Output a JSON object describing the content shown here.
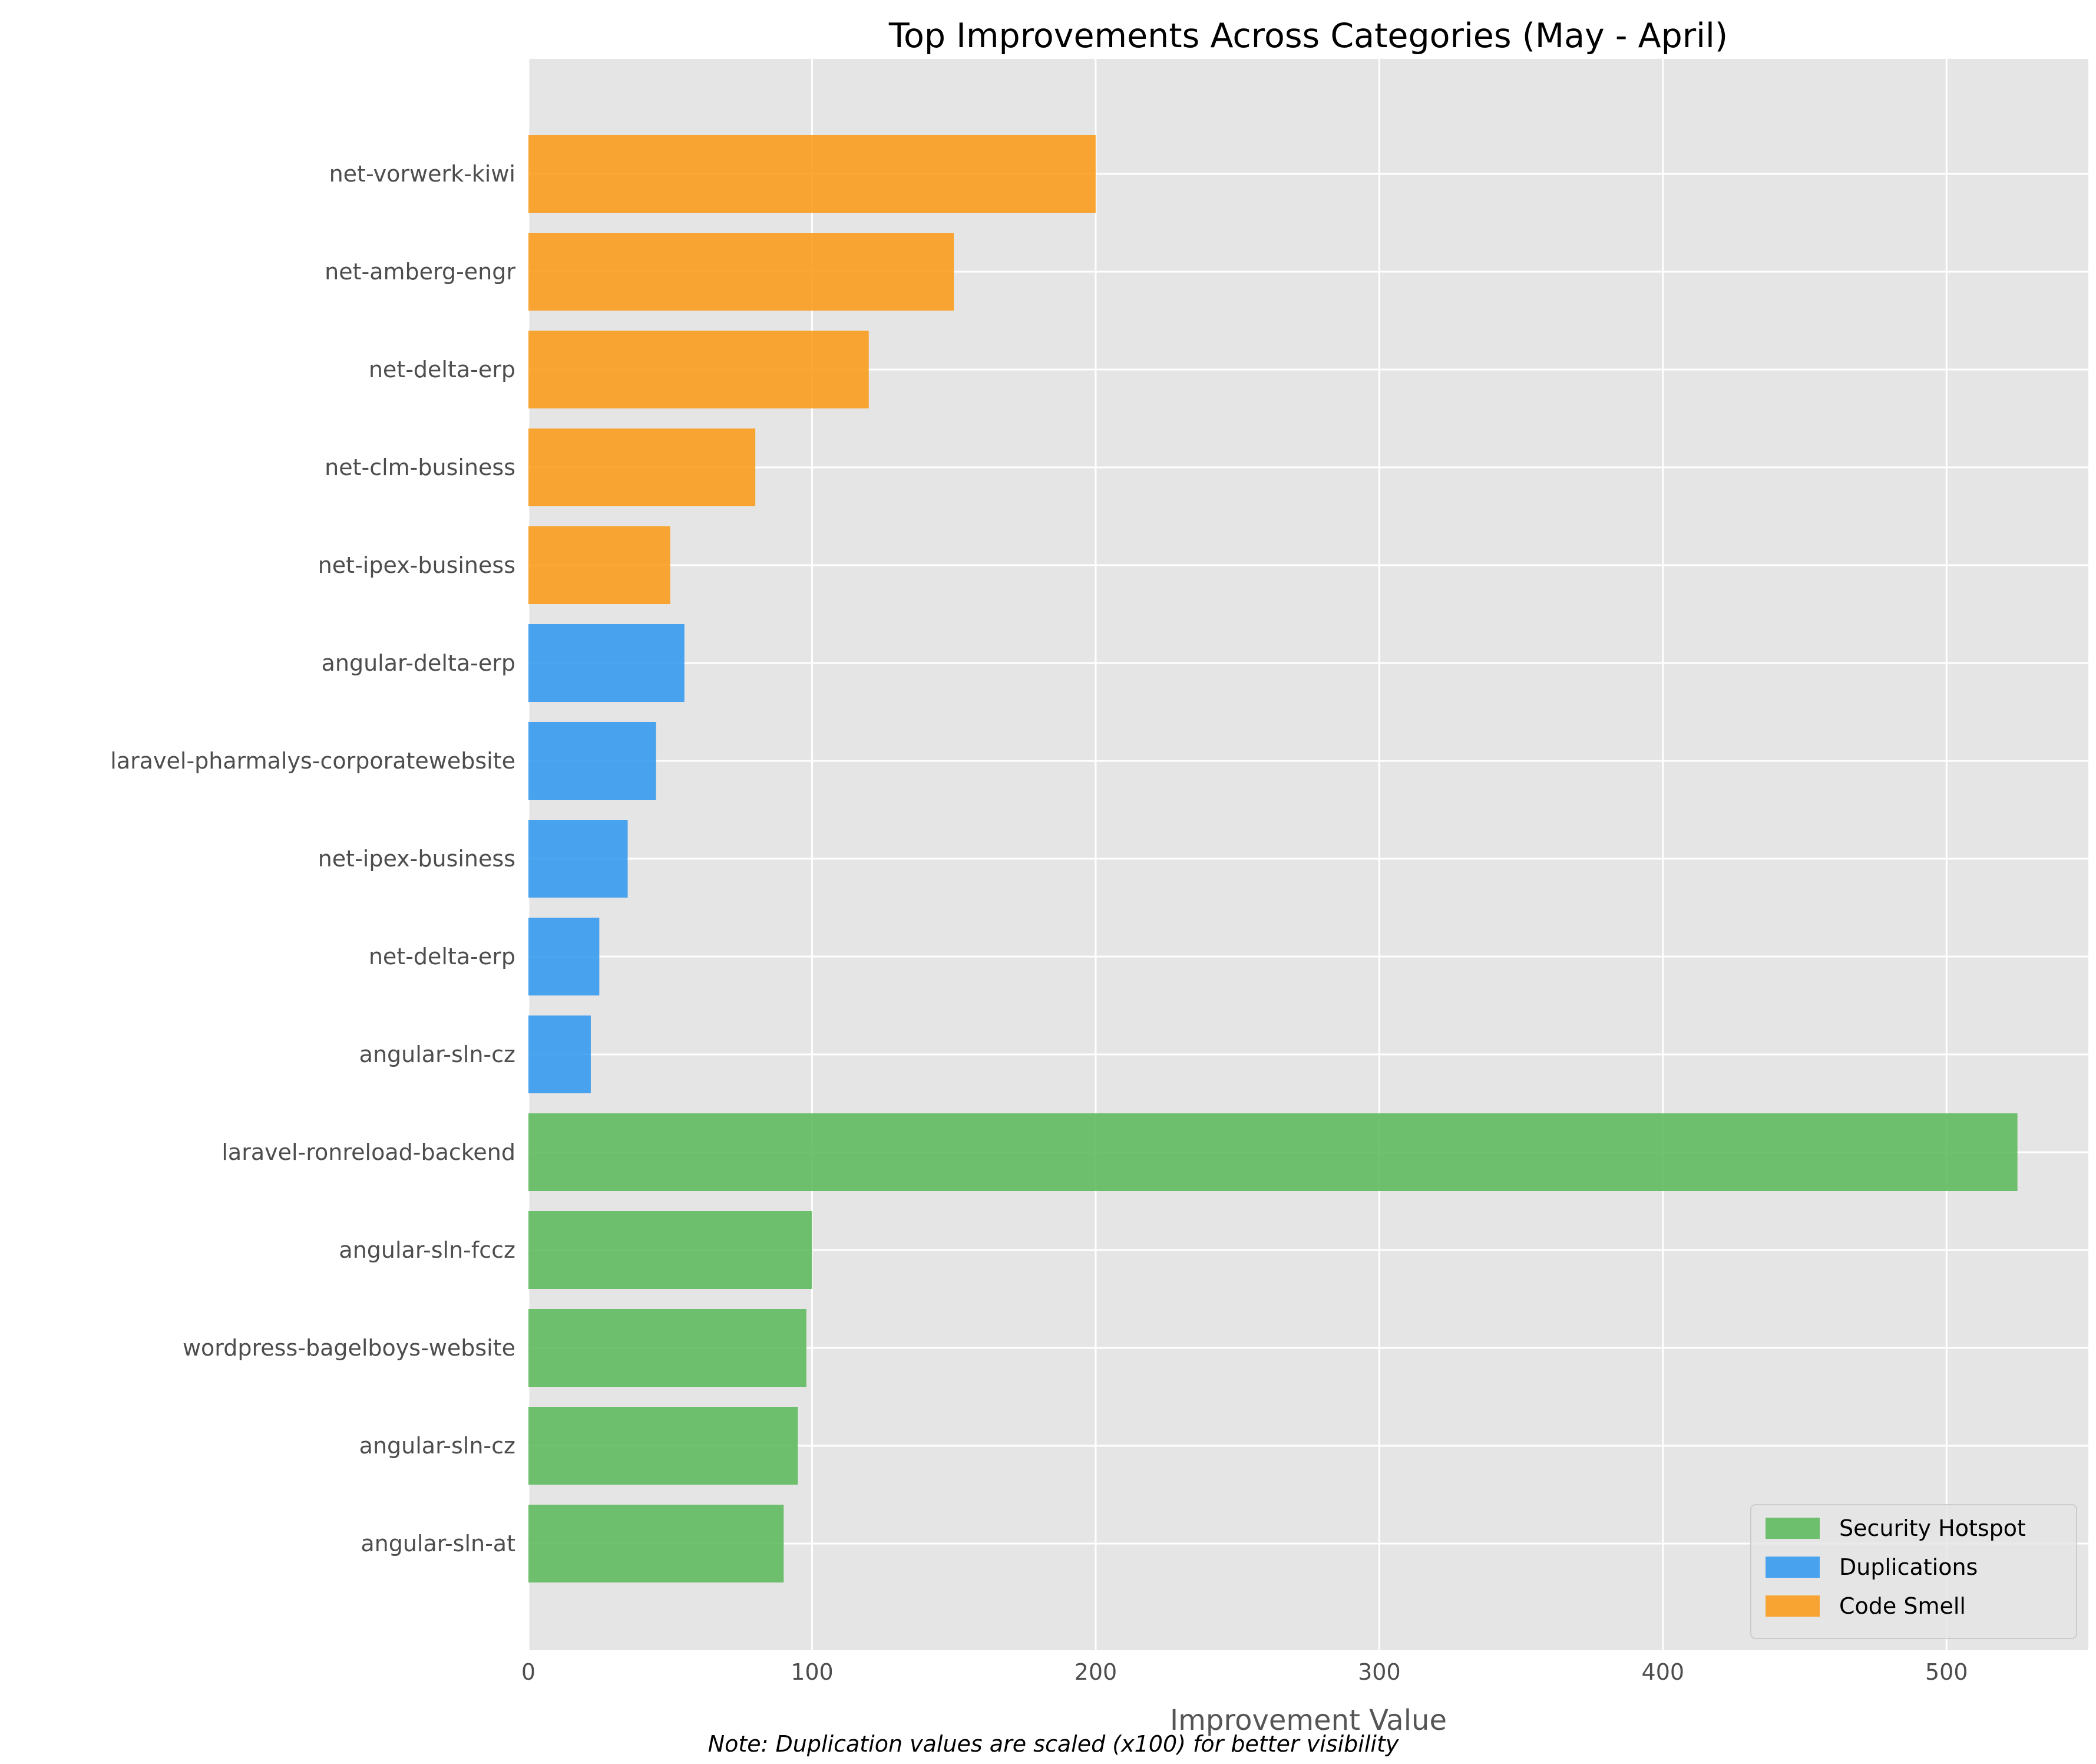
{
  "chart_data": {
    "type": "bar",
    "orientation": "horizontal",
    "title": "Top Improvements Across Categories (May - April)",
    "xlabel": "Improvement Value",
    "ylabel": "",
    "xlim": [
      0,
      550
    ],
    "xticks": [
      0,
      100,
      200,
      300,
      400,
      500
    ],
    "grid": true,
    "legend_position": "lower-right",
    "note": "Note: Duplication values are scaled (x100) for better visibility",
    "bars": [
      {
        "label": "net-vorwerk-kiwi",
        "value": 200,
        "series": "Code Smell"
      },
      {
        "label": "net-amberg-engr",
        "value": 150,
        "series": "Code Smell"
      },
      {
        "label": "net-delta-erp",
        "value": 120,
        "series": "Code Smell"
      },
      {
        "label": "net-clm-business",
        "value": 80,
        "series": "Code Smell"
      },
      {
        "label": "net-ipex-business",
        "value": 50,
        "series": "Code Smell"
      },
      {
        "label": "angular-delta-erp",
        "value": 55,
        "series": "Duplications"
      },
      {
        "label": "laravel-pharmalys-corporatewebsite",
        "value": 45,
        "series": "Duplications"
      },
      {
        "label": "net-ipex-business",
        "value": 35,
        "series": "Duplications"
      },
      {
        "label": "net-delta-erp",
        "value": 25,
        "series": "Duplications"
      },
      {
        "label": "angular-sln-cz",
        "value": 22,
        "series": "Duplications"
      },
      {
        "label": "laravel-ronreload-backend",
        "value": 525,
        "series": "Security Hotspot"
      },
      {
        "label": "angular-sln-fccz",
        "value": 100,
        "series": "Security Hotspot"
      },
      {
        "label": "wordpress-bagelboys-website",
        "value": 98,
        "series": "Security Hotspot"
      },
      {
        "label": "angular-sln-cz",
        "value": 95,
        "series": "Security Hotspot"
      },
      {
        "label": "angular-sln-at",
        "value": 90,
        "series": "Security Hotspot"
      }
    ],
    "series": [
      {
        "name": "Security Hotspot",
        "color": "#5cb85c"
      },
      {
        "name": "Duplications",
        "color": "#3399ee"
      },
      {
        "name": "Code Smell",
        "color": "#f99b1a"
      }
    ]
  }
}
